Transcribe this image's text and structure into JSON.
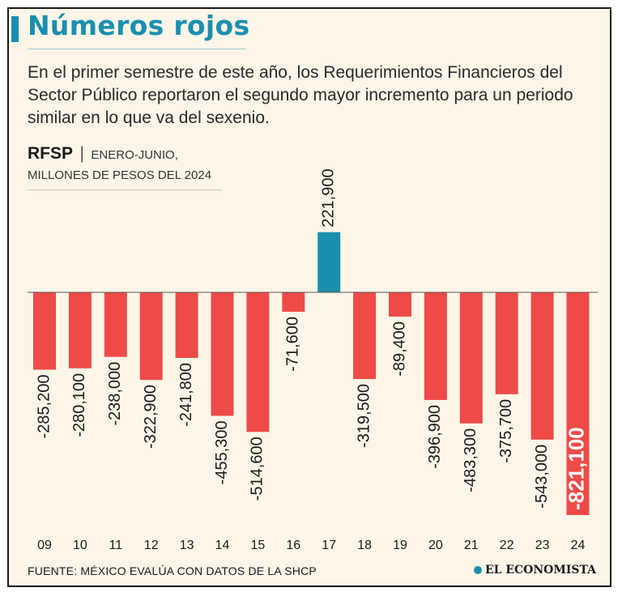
{
  "header": {
    "title": "Números rojos",
    "subtitle": "En el primer semestre de este año, los Requerimientos Financieros del Sector Público reportaron el segundo mayor incremento para un periodo similar en lo que va del sexenio."
  },
  "chart_meta": {
    "label": "RFSP",
    "separator": "|",
    "period": "ENERO-JUNIO,",
    "units": "MILLONES DE PESOS DEL 2024"
  },
  "chart_data": {
    "type": "bar",
    "title": "RFSP",
    "xlabel": "",
    "ylabel": "Millones de pesos del 2024",
    "categories": [
      "09",
      "10",
      "11",
      "12",
      "13",
      "14",
      "15",
      "16",
      "17",
      "18",
      "19",
      "20",
      "21",
      "22",
      "23",
      "24"
    ],
    "values": [
      -285200,
      -280100,
      -238000,
      -322900,
      -241800,
      -455300,
      -514600,
      -71600,
      221900,
      -319500,
      -89400,
      -396900,
      -483300,
      -375700,
      -543000,
      -821100
    ],
    "value_labels": [
      "-285,200",
      "-280,100",
      "-238,000",
      "-322,900",
      "-241,800",
      "-455,300",
      "-514,600",
      "-71,600",
      "221,900",
      "-319,500",
      "-89,400",
      "-396,900",
      "-483,300",
      "-375,700",
      "-543,000",
      "-821,100"
    ],
    "ylim": [
      -821100,
      221900
    ],
    "colors": {
      "negative": "#ee4b48",
      "positive": "#1a8fae",
      "highlight_text": "#ffffff",
      "label_text": "#1a1a1a"
    }
  },
  "footer": {
    "source": "FUENTE: MÉXICO EVALÚA CON DATOS DE LA SHCP",
    "brand": "EL ECONOMISTA"
  }
}
